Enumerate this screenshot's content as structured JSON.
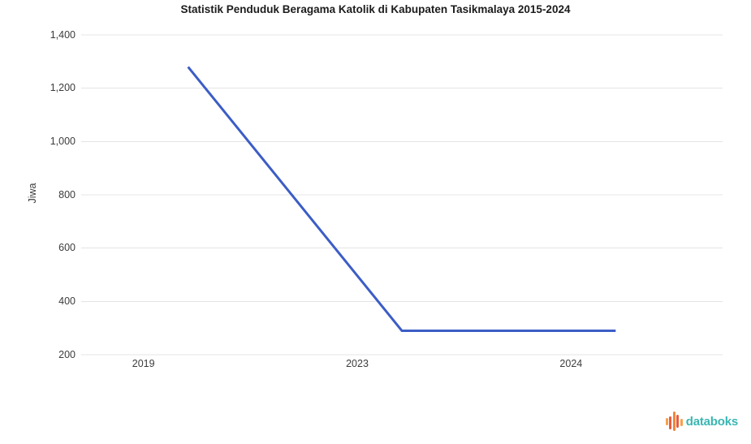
{
  "chart_data": {
    "type": "line",
    "title": "Statistik Penduduk Beragama Katolik di Kabupaten Tasikmalaya 2015-2024",
    "categories": [
      "2019",
      "2023",
      "2024"
    ],
    "values": [
      1280,
      290,
      290
    ],
    "xlabel": "",
    "ylabel": "Jiwa",
    "ylim": [
      200,
      1400
    ],
    "yticks": [
      200,
      400,
      600,
      800,
      1000,
      1200,
      1400
    ],
    "ytick_labels": [
      "200",
      "400",
      "600",
      "800",
      "1,000",
      "1,200",
      "1,400"
    ],
    "grid": true,
    "legend": "none",
    "line_color": "#3C5DC6",
    "gridline_color": "#E4E4E4",
    "text_color": "#3c3c3c"
  },
  "branding": {
    "name": "databoks",
    "text_color": "#3AB6B2",
    "icon_bar_colors": [
      "#F6A14B",
      "#EA5B3D",
      "#F0883C",
      "#EA5B3D",
      "#F6A14B"
    ]
  }
}
